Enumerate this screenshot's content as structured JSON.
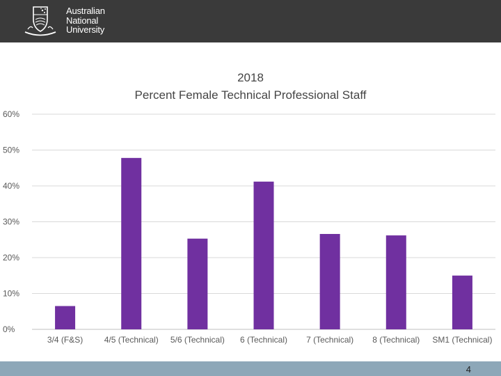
{
  "header": {
    "university_line1": "Australian",
    "university_line2": "National",
    "university_line3": "University",
    "background_color": "#3a3a3a"
  },
  "slide": {
    "page_number": "4"
  },
  "chart_data": {
    "type": "bar",
    "title": "2018",
    "subtitle": "Percent Female Technical Professional Staff",
    "categories": [
      "3/4 (F&S)",
      "4/5 (Technical)",
      "5/6 (Technical)",
      "6 (Technical)",
      "7 (Technical)",
      "8 (Technical)",
      "SM1 (Technical)"
    ],
    "values": [
      6.5,
      47.8,
      25.3,
      41.2,
      26.6,
      26.2,
      15.0
    ],
    "ylim": [
      0,
      60
    ],
    "yticks": [
      0,
      10,
      20,
      30,
      40,
      50,
      60
    ],
    "ytick_labels": [
      "0%",
      "10%",
      "20%",
      "30%",
      "40%",
      "50%",
      "60%"
    ],
    "bar_color": "#7030a0",
    "grid": true,
    "legend": "none"
  }
}
